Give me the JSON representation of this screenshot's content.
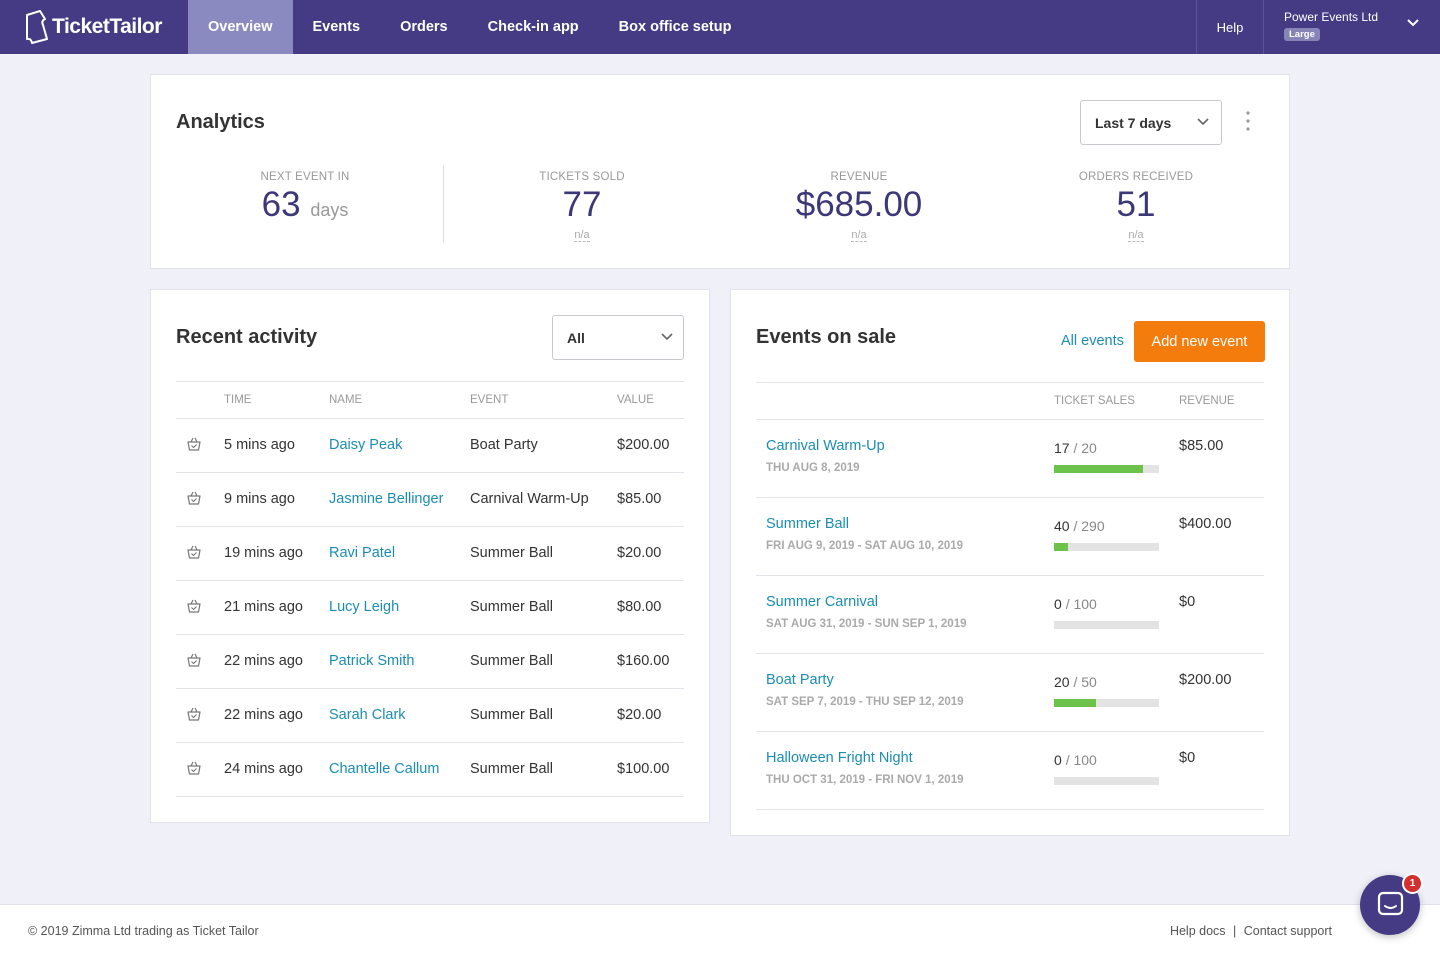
{
  "app": {
    "name": "TicketTailor"
  },
  "nav": {
    "items": [
      {
        "label": "Overview",
        "active": true
      },
      {
        "label": "Events"
      },
      {
        "label": "Orders"
      },
      {
        "label": "Check-in app"
      },
      {
        "label": "Box office setup"
      }
    ],
    "help": "Help",
    "account_name": "Power Events Ltd",
    "account_tier": "Large"
  },
  "analytics": {
    "title": "Analytics",
    "range": "Last 7 days",
    "stats": [
      {
        "label": "NEXT EVENT IN",
        "value": "63",
        "unit": "days"
      },
      {
        "label": "TICKETS SOLD",
        "value": "77",
        "sub": "n/a"
      },
      {
        "label": "REVENUE",
        "value": "$685.00",
        "sub": "n/a"
      },
      {
        "label": "ORDERS RECEIVED",
        "value": "51",
        "sub": "n/a"
      }
    ]
  },
  "activity": {
    "title": "Recent activity",
    "filter": "All",
    "headers": {
      "time": "TIME",
      "name": "NAME",
      "event": "EVENT",
      "value": "VALUE"
    },
    "rows": [
      {
        "time": "5 mins ago",
        "name": "Daisy Peak",
        "event": "Boat Party",
        "value": "$200.00"
      },
      {
        "time": "9 mins ago",
        "name": "Jasmine Bellinger",
        "event": "Carnival Warm-Up",
        "value": "$85.00"
      },
      {
        "time": "19 mins ago",
        "name": "Ravi Patel",
        "event": "Summer Ball",
        "value": "$20.00"
      },
      {
        "time": "21 mins ago",
        "name": "Lucy Leigh",
        "event": "Summer Ball",
        "value": "$80.00"
      },
      {
        "time": "22 mins ago",
        "name": "Patrick Smith",
        "event": "Summer Ball",
        "value": "$160.00"
      },
      {
        "time": "22 mins ago",
        "name": "Sarah Clark",
        "event": "Summer Ball",
        "value": "$20.00"
      },
      {
        "time": "24 mins ago",
        "name": "Chantelle Callum",
        "event": "Summer Ball",
        "value": "$100.00"
      }
    ]
  },
  "events": {
    "title": "Events on sale",
    "all_link": "All events",
    "add_button": "Add new event",
    "headers": {
      "sales": "TICKET SALES",
      "revenue": "REVENUE"
    },
    "rows": [
      {
        "name": "Carnival Warm-Up",
        "date": "THU AUG 8, 2019",
        "sold": "17",
        "capacity": "/ 20",
        "progress": 0.85,
        "revenue": "$85.00"
      },
      {
        "name": "Summer Ball",
        "date": "FRI AUG 9, 2019 - SAT AUG 10, 2019",
        "sold": "40",
        "capacity": "/ 290",
        "progress": 0.138,
        "revenue": "$400.00"
      },
      {
        "name": "Summer Carnival",
        "date": "SAT AUG 31, 2019 - SUN SEP 1, 2019",
        "sold": "0",
        "capacity": "/ 100",
        "progress": 0,
        "revenue": "$0"
      },
      {
        "name": "Boat Party",
        "date": "SAT SEP 7, 2019 - THU SEP 12, 2019",
        "sold": "20",
        "capacity": "/ 50",
        "progress": 0.4,
        "revenue": "$200.00"
      },
      {
        "name": "Halloween Fright Night",
        "date": "THU OCT 31, 2019 - FRI NOV 1, 2019",
        "sold": "0",
        "capacity": "/ 100",
        "progress": 0,
        "revenue": "$0"
      }
    ]
  },
  "footer": {
    "copyright": "© 2019 Zimma Ltd trading as Ticket Tailor",
    "help_docs": "Help docs",
    "separator": "|",
    "contact": "Contact support"
  },
  "chat": {
    "badge": "1"
  },
  "colors": {
    "nav_bg": "#443b84",
    "accent_orange": "#f47c0d",
    "link_blue": "#1b8db3",
    "progress_green": "#6cc24a"
  }
}
